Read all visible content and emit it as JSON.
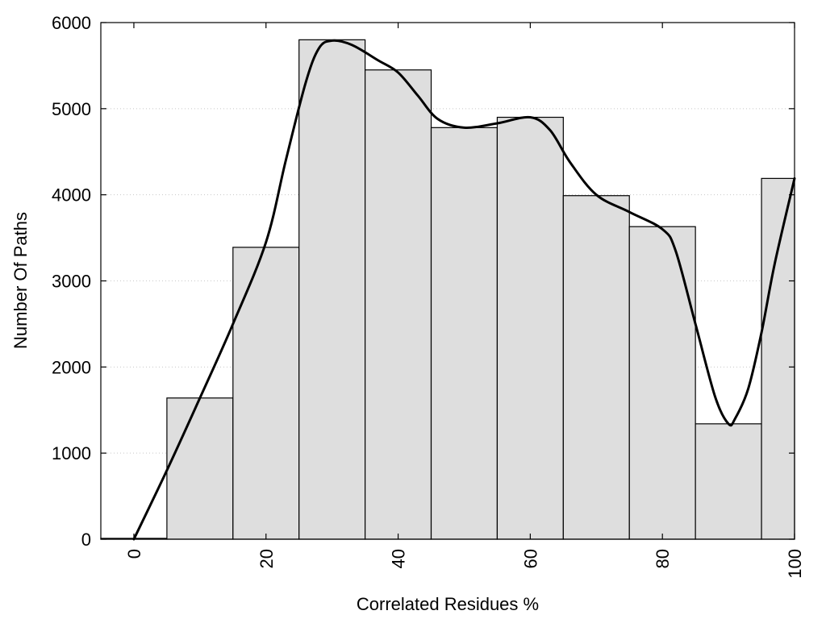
{
  "chart_data": {
    "type": "bar",
    "xlabel": "Correlated Residues %",
    "ylabel": "Number Of Paths",
    "xlim": [
      -5,
      100
    ],
    "ylim": [
      0,
      6000
    ],
    "xticks": [
      0,
      20,
      40,
      60,
      80,
      100
    ],
    "yticks": [
      0,
      1000,
      2000,
      3000,
      4000,
      5000,
      6000
    ],
    "grid": "horizontal-dotted",
    "bins": [
      {
        "x0": -5,
        "x1": 5,
        "value": 10
      },
      {
        "x0": 5,
        "x1": 15,
        "value": 1640
      },
      {
        "x0": 15,
        "x1": 25,
        "value": 3390
      },
      {
        "x0": 25,
        "x1": 35,
        "value": 5800
      },
      {
        "x0": 35,
        "x1": 45,
        "value": 5450
      },
      {
        "x0": 45,
        "x1": 55,
        "value": 4780
      },
      {
        "x0": 55,
        "x1": 65,
        "value": 4900
      },
      {
        "x0": 65,
        "x1": 75,
        "value": 3990
      },
      {
        "x0": 75,
        "x1": 85,
        "value": 3630
      },
      {
        "x0": 85,
        "x1": 95,
        "value": 1340
      },
      {
        "x0": 95,
        "x1": 100,
        "value": 4190
      }
    ],
    "curve": [
      [
        0,
        0
      ],
      [
        5,
        800
      ],
      [
        10,
        1640
      ],
      [
        15,
        2500
      ],
      [
        20,
        3450
      ],
      [
        23,
        4400
      ],
      [
        26,
        5300
      ],
      [
        28,
        5700
      ],
      [
        30,
        5790
      ],
      [
        33,
        5740
      ],
      [
        37,
        5560
      ],
      [
        40,
        5420
      ],
      [
        43,
        5150
      ],
      [
        46,
        4880
      ],
      [
        50,
        4780
      ],
      [
        55,
        4830
      ],
      [
        60,
        4900
      ],
      [
        63,
        4750
      ],
      [
        66,
        4380
      ],
      [
        70,
        4000
      ],
      [
        75,
        3800
      ],
      [
        80,
        3600
      ],
      [
        82,
        3350
      ],
      [
        85,
        2500
      ],
      [
        88,
        1650
      ],
      [
        90,
        1340
      ],
      [
        91,
        1400
      ],
      [
        93,
        1750
      ],
      [
        95,
        2400
      ],
      [
        97,
        3200
      ],
      [
        100,
        4190
      ]
    ]
  }
}
